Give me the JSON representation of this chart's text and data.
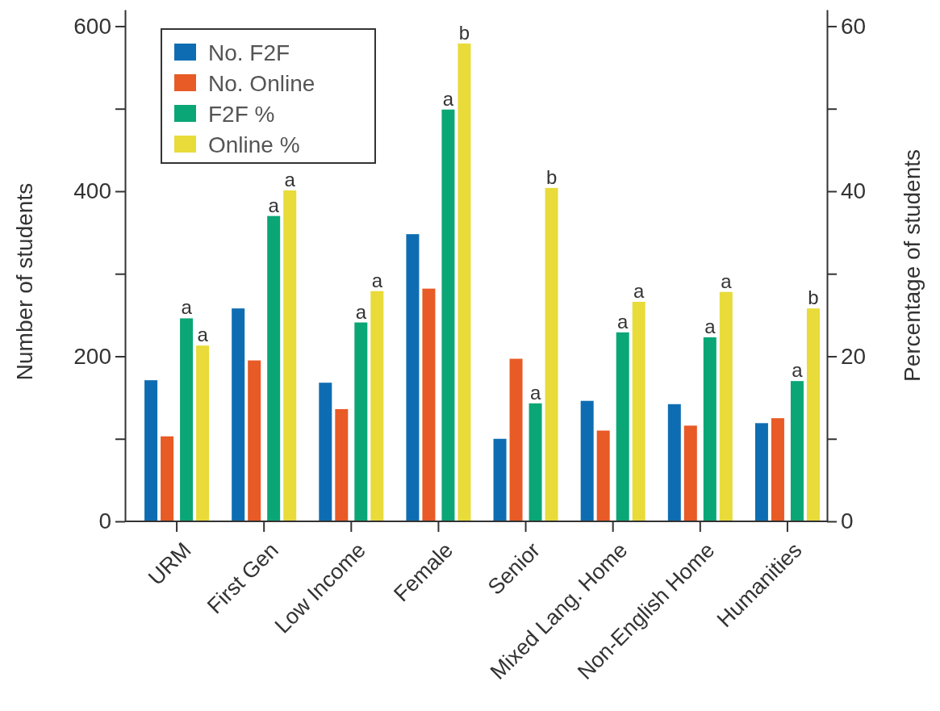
{
  "chart_data": {
    "type": "bar",
    "ylabel": "Number of students",
    "y2label": "Percentage of students",
    "categories": [
      "URM",
      "First Gen",
      "Low Income",
      "Female",
      "Senior",
      "Mixed Lang. Home",
      "Non-English Home",
      "Humanities"
    ],
    "series": [
      {
        "name": "No. F2F",
        "color": "#0e6db2",
        "values": [
          171,
          258,
          168,
          348,
          100,
          146,
          142,
          119
        ]
      },
      {
        "name": "No. Online",
        "color": "#e85a26",
        "values": [
          103,
          195,
          136,
          282,
          197,
          110,
          116,
          125
        ]
      },
      {
        "name": "F2F %",
        "color": "#0ba676",
        "axis": "y2",
        "values": [
          24.6,
          37.0,
          24.1,
          49.9,
          14.3,
          22.9,
          22.3,
          17.0
        ],
        "value_labels": [
          "a",
          "a",
          "a",
          "a",
          "a",
          "a",
          "a",
          "a"
        ]
      },
      {
        "name": "Online %",
        "color": "#e8db3a",
        "axis": "y2",
        "values": [
          21.3,
          40.1,
          27.9,
          57.9,
          40.4,
          26.6,
          27.8,
          25.8
        ],
        "value_labels": [
          "a",
          "a",
          "a",
          "b",
          "b",
          "a",
          "a",
          "b"
        ]
      }
    ],
    "ylim": [
      0,
      620
    ],
    "yticks": [
      0,
      {
        "value": 100,
        "label": null
      },
      200,
      {
        "value": 300,
        "label": null
      },
      400,
      {
        "value": 500,
        "label": null
      },
      600
    ],
    "y2lim": [
      0,
      62
    ],
    "y2ticks": [
      0,
      {
        "value": 10,
        "label": null
      },
      20,
      {
        "value": 30,
        "label": null
      },
      40,
      {
        "value": 50,
        "label": null
      },
      60
    ],
    "legend": "top left"
  }
}
